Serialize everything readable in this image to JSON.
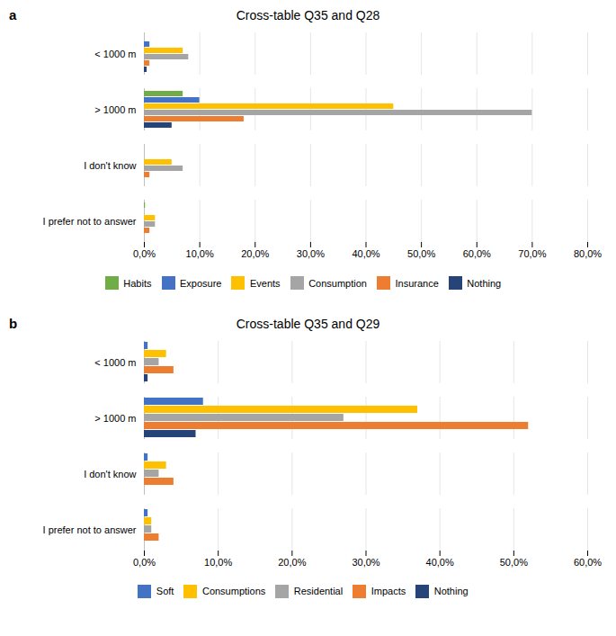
{
  "chart_data": [
    {
      "type": "bar",
      "orientation": "horizontal",
      "title": "Cross-table Q35 and Q28",
      "annotations": [
        "a"
      ],
      "categories": [
        "I prefer not to answer",
        "I don't know",
        "> 1000 m",
        "< 1000 m"
      ],
      "series": [
        {
          "name": "Habits",
          "color": "#70ad47",
          "values": [
            0.2,
            0.0,
            7.0,
            0.0
          ]
        },
        {
          "name": "Exposure",
          "color": "#4472c4",
          "values": [
            0.0,
            0.0,
            10.0,
            1.0
          ]
        },
        {
          "name": "Events",
          "color": "#ffc000",
          "values": [
            2.0,
            5.0,
            45.0,
            7.0
          ]
        },
        {
          "name": "Consumption",
          "color": "#a5a5a5",
          "values": [
            2.0,
            7.0,
            70.0,
            8.0
          ]
        },
        {
          "name": "Insurance",
          "color": "#ed7d31",
          "values": [
            1.0,
            1.0,
            18.0,
            1.0
          ]
        },
        {
          "name": "Nothing",
          "color": "#264478",
          "values": [
            0.0,
            0.0,
            5.0,
            0.5
          ]
        }
      ],
      "xlim": [
        0,
        80
      ],
      "xticks": [
        {
          "value": 0,
          "label": "0,0%"
        },
        {
          "value": 10,
          "label": "10,0%"
        },
        {
          "value": 20,
          "label": "20,0%"
        },
        {
          "value": 30,
          "label": "30,0%"
        },
        {
          "value": 40,
          "label": "40,0%"
        },
        {
          "value": 50,
          "label": "50,0%"
        },
        {
          "value": 60,
          "label": "60,0%"
        },
        {
          "value": 70,
          "label": "70,0%"
        },
        {
          "value": 80,
          "label": "80,0%"
        }
      ],
      "grid": true,
      "legend": "bottom"
    },
    {
      "type": "bar",
      "orientation": "horizontal",
      "title": "Cross-table Q35 and Q29",
      "annotations": [
        "b"
      ],
      "categories": [
        "I prefer not to answer",
        "I don't know",
        "> 1000 m",
        "< 1000 m"
      ],
      "series": [
        {
          "name": "Soft",
          "color": "#4472c4",
          "values": [
            0.5,
            0.5,
            8.0,
            0.5
          ]
        },
        {
          "name": "Consumptions",
          "color": "#ffc000",
          "values": [
            1.0,
            3.0,
            37.0,
            3.0
          ]
        },
        {
          "name": "Residential",
          "color": "#a5a5a5",
          "values": [
            1.0,
            2.0,
            27.0,
            2.0
          ]
        },
        {
          "name": "Impacts",
          "color": "#ed7d31",
          "values": [
            2.0,
            4.0,
            52.0,
            4.0
          ]
        },
        {
          "name": "Nothing",
          "color": "#264478",
          "values": [
            0.0,
            0.0,
            7.0,
            0.5
          ]
        }
      ],
      "xlim": [
        0,
        60
      ],
      "xticks": [
        {
          "value": 0,
          "label": "0,0%"
        },
        {
          "value": 10,
          "label": "10,0%"
        },
        {
          "value": 20,
          "label": "20,0%"
        },
        {
          "value": 30,
          "label": "30,0%"
        },
        {
          "value": 40,
          "label": "40,0%"
        },
        {
          "value": 50,
          "label": "50,0%"
        },
        {
          "value": 60,
          "label": "60,0%"
        }
      ],
      "grid": true,
      "legend": "bottom"
    }
  ]
}
